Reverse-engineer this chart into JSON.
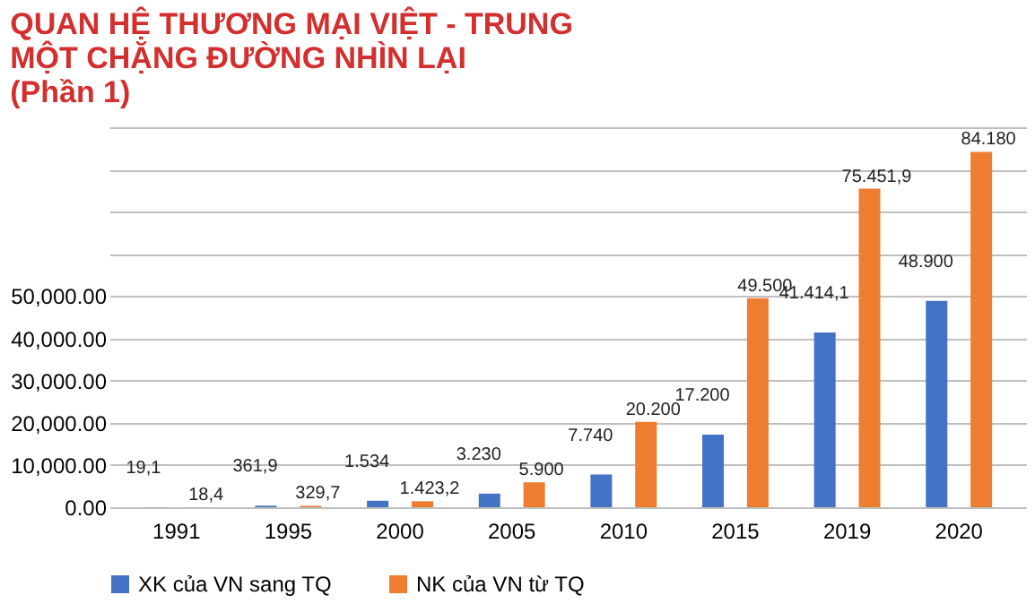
{
  "chart_data": {
    "type": "bar",
    "title": "QUAN HỆ THƯƠNG MẠI VIỆT - TRUNG\nMỘT CHẶNG ĐƯỜNG NHÌN LẠI\n(Phần 1)",
    "categories": [
      "1991",
      "1995",
      "2000",
      "2005",
      "2010",
      "2015",
      "2019",
      "2020"
    ],
    "series": [
      {
        "name": "XK của VN sang TQ",
        "color": "#4472c4",
        "values": [
          19.1,
          361.9,
          1534,
          3230,
          7740,
          17200,
          41414.1,
          48900
        ],
        "value_labels": [
          "19,1",
          "361,9",
          "1.534",
          "3.230",
          "7.740",
          "17.200",
          "41.414,1",
          "48.900"
        ]
      },
      {
        "name": "NK của VN từ TQ",
        "color": "#ed7d31",
        "values": [
          18.4,
          329.7,
          1423.2,
          5900,
          20200,
          49500,
          75451.9,
          84180
        ],
        "value_labels": [
          "18,4",
          "329,7",
          "1.423,2",
          "5.900",
          "20.200",
          "49.500",
          "75.451,9",
          "84.180"
        ]
      }
    ],
    "ylim": [
      0,
      90000
    ],
    "yticks": [
      {
        "value": 0,
        "label": "0.00"
      },
      {
        "value": 10000,
        "label": "10,000.00"
      },
      {
        "value": 20000,
        "label": "20,000.00"
      },
      {
        "value": 30000,
        "label": "30,000.00"
      },
      {
        "value": 40000,
        "label": "40,000.00"
      },
      {
        "value": 50000,
        "label": "50,000.00"
      },
      {
        "value": 60000,
        "label": null
      },
      {
        "value": 70000,
        "label": null
      },
      {
        "value": 80000,
        "label": null
      },
      {
        "value": 90000,
        "label": null
      }
    ],
    "grid": "y",
    "legend": "bottom"
  }
}
